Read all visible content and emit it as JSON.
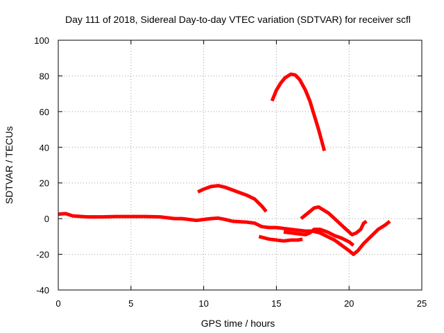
{
  "chart_data": {
    "type": "line",
    "title": "Day 111 of 2018, Sidereal Day-to-day VTEC variation (SDTVAR) for receiver scfl",
    "xlabel": "GPS time / hours",
    "ylabel": "SDTVAR / TECUs",
    "xlim": [
      0,
      25
    ],
    "ylim": [
      -40,
      100
    ],
    "xticks": [
      "0",
      "5",
      "10",
      "15",
      "20",
      "25"
    ],
    "yticks": [
      "-40",
      "-20",
      "0",
      "20",
      "40",
      "60",
      "80",
      "100"
    ],
    "grid": true,
    "legend": "none",
    "color": "#ff0000",
    "series": [
      {
        "points": [
          [
            0,
            2.5
          ],
          [
            0.5,
            2.8
          ],
          [
            1,
            1.5
          ],
          [
            2,
            1
          ],
          [
            3,
            1
          ],
          [
            4,
            1.2
          ],
          [
            5,
            1.2
          ],
          [
            6,
            1.2
          ],
          [
            7,
            1
          ],
          [
            8,
            0
          ],
          [
            8.5,
            0
          ],
          [
            9,
            -0.5
          ],
          [
            9.5,
            -1
          ],
          [
            10,
            -0.5
          ],
          [
            10.5,
            0
          ],
          [
            11,
            0.3
          ],
          [
            11.5,
            -0.5
          ],
          [
            12,
            -1.5
          ],
          [
            13,
            -2
          ],
          [
            13.5,
            -2.5
          ],
          [
            14,
            -4.5
          ],
          [
            14.5,
            -5
          ],
          [
            15,
            -5
          ],
          [
            15.5,
            -5.5
          ],
          [
            16,
            -6
          ],
          [
            16.5,
            -6.5
          ],
          [
            17,
            -7
          ],
          [
            17.5,
            -7
          ],
          [
            18,
            -8
          ],
          [
            18.5,
            -10
          ],
          [
            19,
            -12
          ],
          [
            19.5,
            -15
          ],
          [
            20,
            -18
          ],
          [
            20.3,
            -20
          ],
          [
            20.6,
            -18
          ],
          [
            21,
            -14
          ],
          [
            21.5,
            -10
          ],
          [
            22,
            -6
          ],
          [
            22.5,
            -3.5
          ],
          [
            22.8,
            -1.5
          ]
        ]
      },
      {
        "points": [
          [
            9.6,
            15
          ],
          [
            10,
            16.5
          ],
          [
            10.5,
            18
          ],
          [
            11,
            18.5
          ],
          [
            11.5,
            17.5
          ],
          [
            12,
            16
          ],
          [
            12.5,
            14.5
          ],
          [
            13,
            13
          ],
          [
            13.5,
            11
          ],
          [
            14,
            7
          ],
          [
            14.3,
            4
          ]
        ]
      },
      {
        "points": [
          [
            14.7,
            66
          ],
          [
            15,
            72
          ],
          [
            15.3,
            76
          ],
          [
            15.6,
            79
          ],
          [
            16,
            81
          ],
          [
            16.3,
            80.5
          ],
          [
            16.6,
            78
          ],
          [
            17,
            72
          ],
          [
            17.3,
            66
          ],
          [
            17.6,
            58
          ],
          [
            17.9,
            50
          ],
          [
            18.1,
            44
          ],
          [
            18.3,
            38
          ]
        ]
      },
      {
        "points": [
          [
            13.8,
            -10
          ],
          [
            14.5,
            -11.5
          ],
          [
            15,
            -12
          ],
          [
            15.5,
            -12.5
          ],
          [
            16,
            -12
          ],
          [
            16.5,
            -12
          ],
          [
            16.8,
            -11.5
          ]
        ]
      },
      {
        "points": [
          [
            15.5,
            -7.5
          ],
          [
            16,
            -8
          ],
          [
            16.5,
            -8.5
          ],
          [
            17,
            -9
          ],
          [
            17.3,
            -8
          ],
          [
            17.6,
            -6
          ],
          [
            18,
            -6
          ],
          [
            18.5,
            -7.5
          ],
          [
            19,
            -9.5
          ],
          [
            19.5,
            -11
          ],
          [
            20,
            -13
          ],
          [
            20.3,
            -15
          ]
        ]
      },
      {
        "points": [
          [
            16.7,
            0
          ],
          [
            17,
            2
          ],
          [
            17.3,
            4
          ],
          [
            17.6,
            6
          ],
          [
            17.9,
            6.5
          ],
          [
            18.2,
            5
          ],
          [
            18.6,
            3
          ],
          [
            19,
            0
          ],
          [
            19.4,
            -3
          ],
          [
            19.8,
            -6
          ],
          [
            20.2,
            -9
          ],
          [
            20.5,
            -8
          ],
          [
            20.8,
            -6
          ],
          [
            21,
            -2.5
          ],
          [
            21.2,
            -1.5
          ]
        ]
      }
    ]
  }
}
